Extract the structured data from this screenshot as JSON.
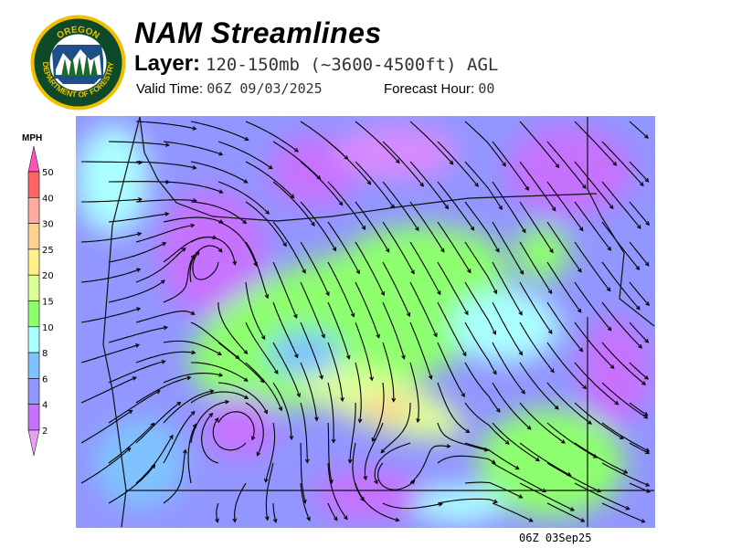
{
  "header": {
    "title": "NAM Streamlines",
    "layer_label": "Layer:",
    "layer_value": "120-150mb (~3600-4500ft) AGL",
    "valid_label": "Valid Time:",
    "valid_value": "06Z 09/03/2025",
    "forecast_label": "Forecast Hour:",
    "forecast_value": "00"
  },
  "logo": {
    "text_top": "OREGON",
    "text_bottom": "DEPARTMENT OF FORESTRY"
  },
  "legend": {
    "unit": "MPH",
    "ticks": [
      "50",
      "40",
      "30",
      "25",
      "20",
      "15",
      "10",
      "8",
      "6",
      "4",
      "2"
    ],
    "colors": [
      "#ff6464",
      "#ffaca0",
      "#ffd292",
      "#fff08a",
      "#dcff98",
      "#8eff6e",
      "#aaffff",
      "#80c2ff",
      "#9296ff",
      "#c672ff"
    ],
    "over_color": "#ff55bb",
    "under_color": "#e8a0f0"
  },
  "footer": {
    "stamp": "06Z 03Sep25"
  }
}
